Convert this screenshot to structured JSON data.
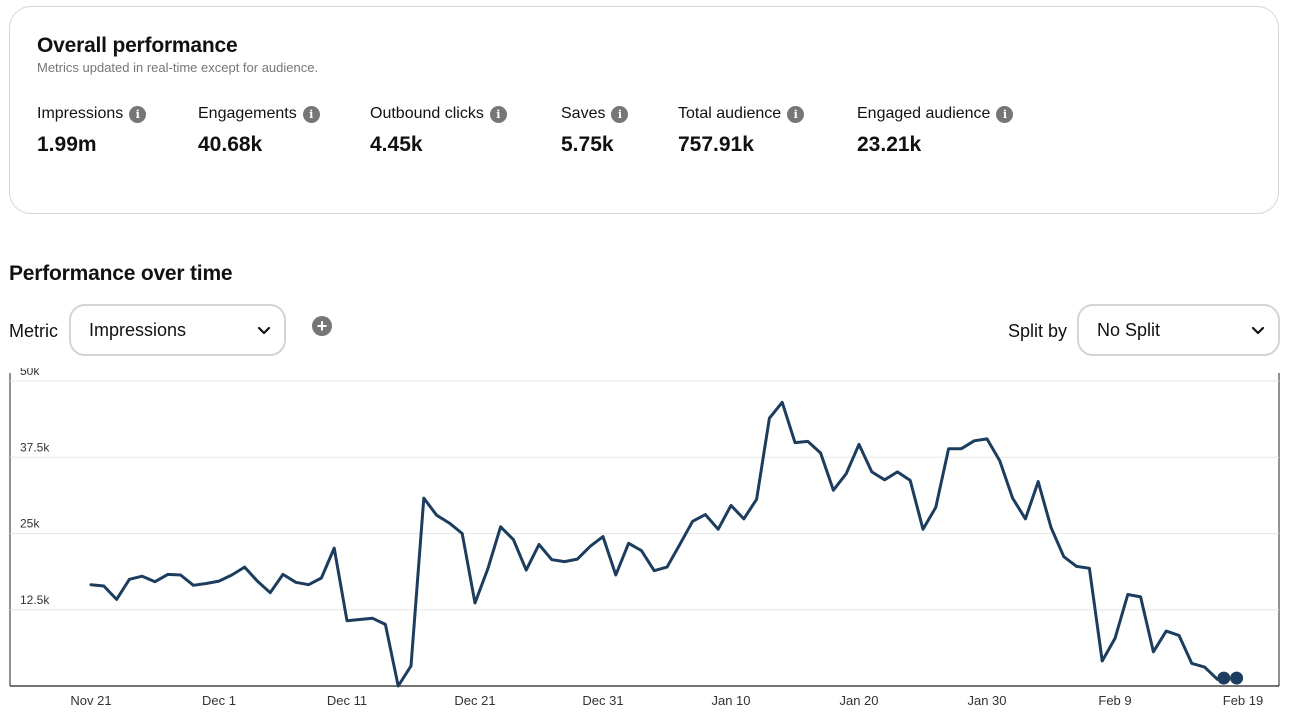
{
  "overall": {
    "title": "Overall performance",
    "subtitle": "Metrics updated in real-time except for audience.",
    "metrics": [
      {
        "label": "Impressions",
        "value": "1.99m"
      },
      {
        "label": "Engagements",
        "value": "40.68k"
      },
      {
        "label": "Outbound clicks",
        "value": "4.45k"
      },
      {
        "label": "Saves",
        "value": "5.75k"
      },
      {
        "label": "Total audience",
        "value": "757.91k"
      },
      {
        "label": "Engaged audience",
        "value": "23.21k"
      }
    ],
    "info_icon": "info-icon"
  },
  "over_time": {
    "title": "Performance over time",
    "metric_label": "Metric",
    "metric_selected": "Impressions",
    "split_label": "Split by",
    "split_selected": "No Split",
    "add_icon": "plus-circle-icon"
  },
  "colors": {
    "line": "#1c3d5e",
    "grid": "#e6e6e6",
    "muted": "#767676"
  },
  "chart_data": {
    "type": "line",
    "title": "Performance over time",
    "xlabel": "",
    "ylabel": "Impressions",
    "ylim": [
      0,
      50000
    ],
    "yticks": [
      {
        "value": 12500,
        "label": "12.5k"
      },
      {
        "value": 25000,
        "label": "25k"
      },
      {
        "value": 37500,
        "label": "37.5k"
      },
      {
        "value": 50000,
        "label": "50k"
      }
    ],
    "xticks": [
      {
        "day": 0,
        "label": "Nov 21"
      },
      {
        "day": 10,
        "label": "Dec 1"
      },
      {
        "day": 20,
        "label": "Dec 11"
      },
      {
        "day": 30,
        "label": "Dec 21"
      },
      {
        "day": 40,
        "label": "Dec 31"
      },
      {
        "day": 50,
        "label": "Jan 10"
      },
      {
        "day": 60,
        "label": "Jan 20"
      },
      {
        "day": 70,
        "label": "Jan 30"
      },
      {
        "day": 80,
        "label": "Feb 9"
      },
      {
        "day": 90,
        "label": "Feb 19"
      }
    ],
    "series": [
      {
        "name": "Impressions",
        "start_day": 0,
        "values": [
          16600,
          16400,
          14200,
          17500,
          18000,
          17100,
          18300,
          18200,
          16500,
          16800,
          17200,
          18200,
          19500,
          17200,
          15300,
          18300,
          17000,
          16600,
          17700,
          22600,
          10700,
          10900,
          11100,
          10100,
          0,
          3300,
          30800,
          28000,
          26700,
          25000,
          13600,
          19200,
          26100,
          24000,
          19000,
          23200,
          20700,
          20400,
          20800,
          22900,
          24500,
          18200,
          23400,
          22200,
          18900,
          19500,
          23200,
          27000,
          28100,
          25700,
          29600,
          27400,
          30600,
          43900,
          46500,
          39900,
          40100,
          38200,
          32100,
          34800,
          39600,
          35100,
          33800,
          35100,
          33700,
          25700,
          29300,
          38900,
          38900,
          40200,
          40500,
          36900,
          30800,
          27400,
          33500,
          26000,
          21200,
          19600,
          19300,
          4100,
          7800,
          15000,
          14600,
          5600,
          9000,
          8300,
          3700,
          3100,
          1100
        ]
      }
    ],
    "end_markers": [
      {
        "day": 88.5,
        "value": 1300
      },
      {
        "day": 89.5,
        "value": 1300
      }
    ]
  }
}
